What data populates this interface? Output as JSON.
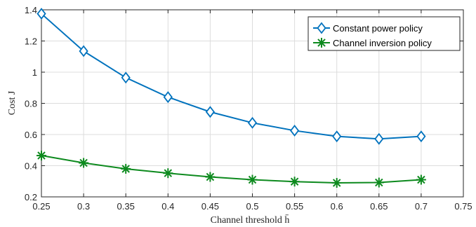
{
  "chart_data": {
    "type": "line",
    "xlabel": "Channel threshold h̄",
    "ylabel": "Cost J",
    "xlim": [
      0.25,
      0.75
    ],
    "ylim": [
      0.2,
      1.4
    ],
    "xticks": [
      0.25,
      0.3,
      0.35,
      0.4,
      0.45,
      0.5,
      0.55,
      0.6,
      0.65,
      0.7,
      0.75
    ],
    "xtick_labels": [
      "0.25",
      "0.3",
      "0.35",
      "0.4",
      "0.45",
      "0.5",
      "0.55",
      "0.6",
      "0.65",
      "0.7",
      "0.75"
    ],
    "yticks": [
      0.2,
      0.4,
      0.6,
      0.8,
      1.0,
      1.2,
      1.4
    ],
    "ytick_labels": [
      "0.2",
      "0.4",
      "0.6",
      "0.8",
      "1",
      "1.2",
      "1.4"
    ],
    "grid": true,
    "legend_position": "top-right",
    "x": [
      0.25,
      0.3,
      0.35,
      0.4,
      0.45,
      0.5,
      0.55,
      0.6,
      0.65,
      0.7
    ],
    "series": [
      {
        "name": "Constant power policy",
        "color": "#0072BD",
        "marker": "diamond",
        "values": [
          1.375,
          1.135,
          0.965,
          0.84,
          0.745,
          0.675,
          0.625,
          0.588,
          0.572,
          0.588
        ]
      },
      {
        "name": "Channel inversion policy",
        "color": "#0D8A1E",
        "marker": "asterisk",
        "values": [
          0.465,
          0.418,
          0.38,
          0.352,
          0.328,
          0.31,
          0.298,
          0.29,
          0.292,
          0.31
        ]
      }
    ]
  }
}
